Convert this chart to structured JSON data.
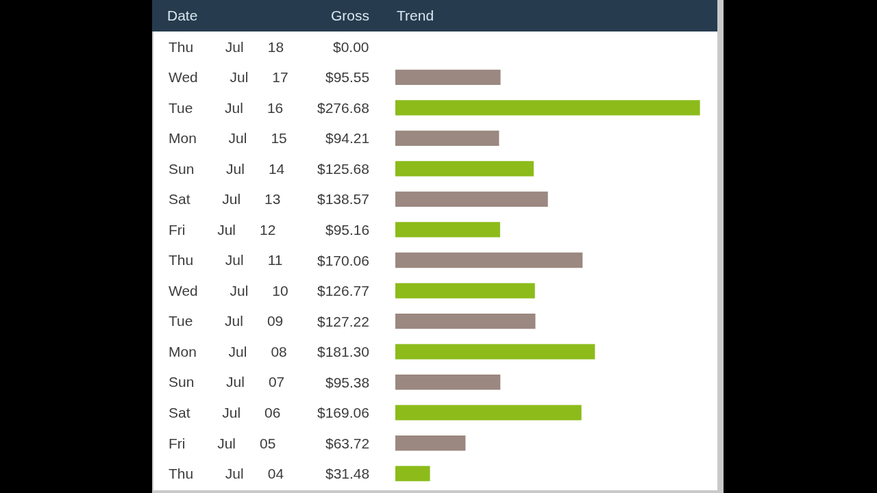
{
  "chart_data": {
    "type": "bar",
    "orientation": "horizontal",
    "ylabel": "Date",
    "xlabel": "Trend",
    "annotations": [
      "Gross"
    ],
    "categories": [
      "Thu Jul 18",
      "Wed Jul 17",
      "Tue Jul 16",
      "Mon Jul 15",
      "Sun Jul 14",
      "Sat Jul 13",
      "Fri Jul 12",
      "Thu Jul 11",
      "Wed Jul 10",
      "Tue Jul 09",
      "Mon Jul 08",
      "Sun Jul 07",
      "Sat Jul 06",
      "Fri Jul 05",
      "Thu Jul 04"
    ],
    "values": [
      0.0,
      95.55,
      276.68,
      94.21,
      125.68,
      138.57,
      95.16,
      170.06,
      126.77,
      127.22,
      181.3,
      95.38,
      169.06,
      63.72,
      31.48
    ],
    "value_labels": [
      "$0.00",
      "$95.55",
      "$276.68",
      "$94.21",
      "$125.68",
      "$138.57",
      "$95.16",
      "$170.06",
      "$126.77",
      "$127.22",
      "$181.30",
      "$95.38",
      "$169.06",
      "$63.72",
      "$31.48"
    ],
    "colors": [
      "#8cbb1a",
      "#9b8880",
      "#8cbb1a",
      "#9b8880",
      "#8cbb1a",
      "#9b8880",
      "#8cbb1a",
      "#9b8880",
      "#8cbb1a",
      "#9b8880",
      "#8cbb1a",
      "#9b8880",
      "#8cbb1a",
      "#9b8880",
      "#8cbb1a"
    ],
    "tick_labels": "y"
  }
}
